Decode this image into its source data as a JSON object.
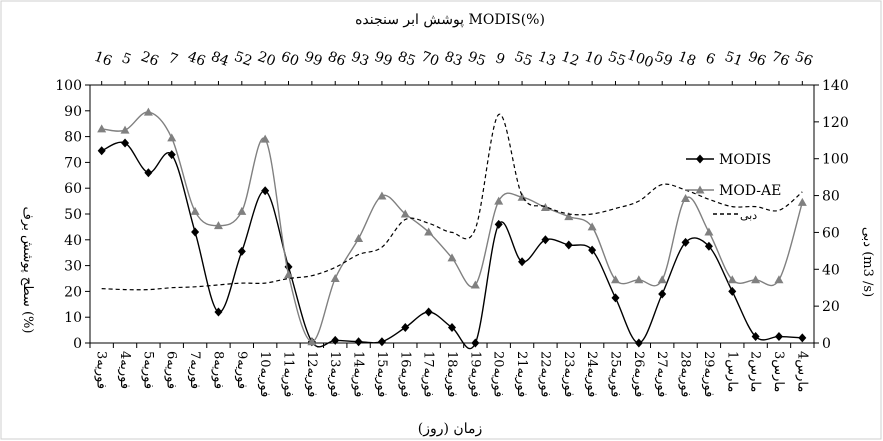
{
  "chart_data": {
    "type": "line",
    "title": "پوشش ابر سنجنده  MODIS(%)",
    "xlabel": "زمان (روز)",
    "ylabel_left": "سطح پوشش برف (%)",
    "ylabel_right": "دبی (m3 /s)",
    "ylim_left": [
      0,
      100
    ],
    "ylim_right": [
      0,
      140
    ],
    "yticks_left": [
      "0",
      "10",
      "20",
      "30",
      "40",
      "50",
      "60",
      "70",
      "80",
      "90",
      "100"
    ],
    "yticks_right": [
      "0",
      "20",
      "40",
      "60",
      "80",
      "100",
      "120",
      "140"
    ],
    "categories": [
      "3فوریه",
      "4فوریه",
      "5فوریه",
      "6فوریه",
      "7فوریه",
      "8فوریه",
      "9فوریه",
      "10فوریه",
      "11فوریه",
      "12فوریه",
      "13فوریه",
      "14فوریه",
      "15فوریه",
      "16فوریه",
      "17فوریه",
      "18فوریه",
      "19فوریه",
      "20فوریه",
      "21فوریه",
      "22فوریه",
      "23فوریه",
      "24فوریه",
      "25فوریه",
      "26فوریه",
      "27فوریه",
      "28فوریه",
      "29فوریه",
      "1مارس",
      "2مارس",
      "3مارس",
      "4مارس"
    ],
    "cloud_cover": [
      "16",
      "5",
      "26",
      "7",
      "46",
      "84",
      "52",
      "20",
      "60",
      "99",
      "86",
      "93",
      "99",
      "85",
      "70",
      "83",
      "95",
      "9",
      "55",
      "13",
      "12",
      "10",
      "55",
      "100",
      "59",
      "18",
      "6",
      "51",
      "96",
      "76",
      "56"
    ],
    "series": [
      {
        "name": "MODIS",
        "axis": "left",
        "color": "#000000",
        "marker": "diamond",
        "style": "solid",
        "values": [
          74.5,
          77.5,
          66,
          73,
          43,
          12,
          35.5,
          59,
          29.5,
          0.5,
          1,
          0.5,
          0.5,
          6,
          12,
          6,
          0,
          46,
          31.5,
          40,
          38,
          36,
          17.5,
          0,
          19,
          39,
          37.5,
          20,
          2.5,
          2.5,
          2
        ]
      },
      {
        "name": "MOD-AE",
        "axis": "left",
        "color": "#808080",
        "marker": "triangle",
        "style": "solid",
        "values": [
          83,
          82.5,
          89.5,
          79.5,
          51,
          45.5,
          51,
          79,
          26.5,
          0.5,
          25,
          40.5,
          57,
          50,
          43,
          33,
          22.5,
          55,
          56.5,
          52.5,
          49,
          45,
          24.5,
          24.5,
          24.5,
          56,
          43,
          24.5,
          24.5,
          24.5,
          54.5
        ]
      },
      {
        "name": "دبی",
        "axis": "right",
        "color": "#000000",
        "marker": "none",
        "style": "dashed",
        "values": [
          29.5,
          29,
          29,
          30,
          30.5,
          31.5,
          32.5,
          32.5,
          35,
          36.5,
          41,
          48,
          52,
          67,
          65,
          60,
          62,
          124,
          80,
          74,
          70,
          70,
          73,
          77,
          86,
          83,
          78,
          74,
          74,
          72,
          82
        ]
      }
    ]
  }
}
